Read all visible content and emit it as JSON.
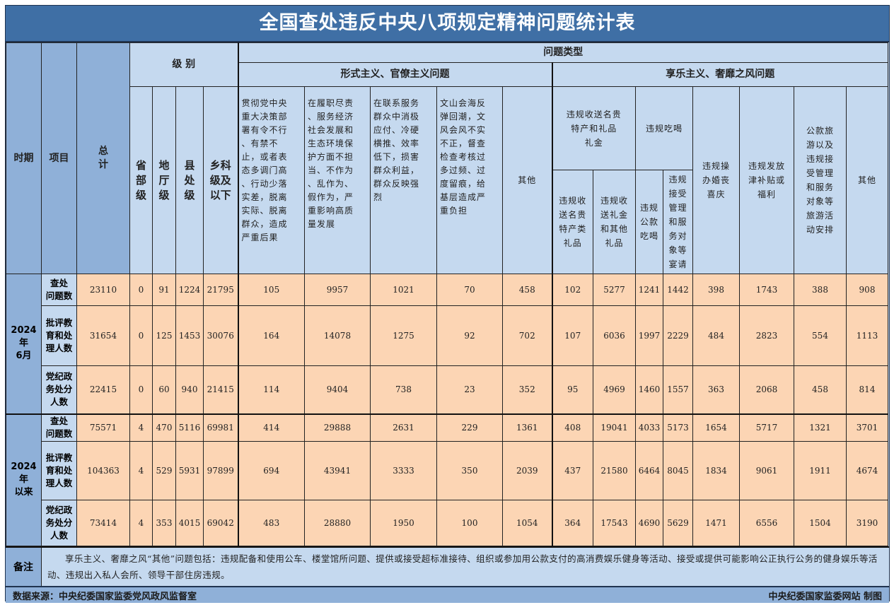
{
  "title": "全国查处违反中央八项规定精神问题统计表",
  "header": {
    "period": "时期",
    "item": "项目",
    "total": "总\n计",
    "level": "级 别",
    "levels": [
      "省\n部\n级",
      "地\n厅\n级",
      "县\n处\n级",
      "乡科\n级及\n以下"
    ],
    "problem_type": "问题类型",
    "formalism": "形式主义、官僚主义问题",
    "formalism_cols": [
      "贯彻党中央\n重大决策部\n署有令不行\n、有禁不\n止，或者表\n态多调门高\n、行动少落\n实差，脱离\n实际、脱离\n群众，造成\n严重后果",
      "在履职尽责\n、服务经济\n社会发展和\n生态环境保\n护方面不担\n当、不作为\n、乱作为、\n假作为，严\n重影响高质\n量发展",
      "在联系服务\n群众中消极\n应付、冷硬\n横推、效率\n低下，损害\n群众利益，\n群众反映强\n烈",
      "文山会海反\n弹回潮，文\n风会风不实\n不正，督查\n检查考核过\n多过频、过\n度留痕，给\n基层造成严\n重负担",
      "其他"
    ],
    "hedonism": "享乐主义、奢靡之风问题",
    "gift_group": "违规收送名贵\n特产和礼品\n礼金",
    "gift_cols": [
      "违规收\n送名贵\n特产类\n礼品",
      "违规收\n送礼金\n和其他\n礼品"
    ],
    "dining_group": "违规吃喝",
    "dining_cols": [
      "违规\n公款\n吃喝",
      "违规\n接受\n管理\n和服\n务对\n象等\n宴请"
    ],
    "hedonism_cols": [
      "违规操\n办婚丧\n喜庆",
      "违规发放\n津补贴或\n福利",
      "公款旅\n游以及\n违规接\n受管理\n和服务\n对象等\n旅游活\n动安排",
      "其他"
    ]
  },
  "periods": [
    {
      "label": "2024年\n6月",
      "rows": [
        {
          "item": "查处\n问题数",
          "values": [
            "23110",
            "0",
            "91",
            "1224",
            "21795",
            "105",
            "9957",
            "1021",
            "70",
            "458",
            "102",
            "5277",
            "1241",
            "1442",
            "398",
            "1743",
            "388",
            "908"
          ]
        },
        {
          "item": "批评教\n育和处\n理人数",
          "values": [
            "31654",
            "0",
            "125",
            "1453",
            "30076",
            "164",
            "14078",
            "1275",
            "92",
            "702",
            "107",
            "6036",
            "1997",
            "2229",
            "484",
            "2823",
            "554",
            "1113"
          ]
        },
        {
          "item": "党纪政\n务处分\n人数",
          "values": [
            "22415",
            "0",
            "60",
            "940",
            "21415",
            "114",
            "9404",
            "738",
            "23",
            "352",
            "95",
            "4969",
            "1460",
            "1557",
            "363",
            "2068",
            "458",
            "814"
          ]
        }
      ]
    },
    {
      "label": "2024年\n以来",
      "rows": [
        {
          "item": "查处\n问题数",
          "values": [
            "75571",
            "4",
            "470",
            "5116",
            "69981",
            "414",
            "29888",
            "2631",
            "229",
            "1361",
            "408",
            "19041",
            "4033",
            "5173",
            "1654",
            "5717",
            "1321",
            "3701"
          ]
        },
        {
          "item": "批评教\n育和处\n理人数",
          "values": [
            "104363",
            "4",
            "529",
            "5931",
            "97899",
            "694",
            "43941",
            "3333",
            "350",
            "2039",
            "437",
            "21580",
            "6464",
            "8045",
            "1834",
            "9061",
            "1911",
            "4674"
          ]
        },
        {
          "item": "党纪政\n务处分\n人数",
          "values": [
            "73414",
            "4",
            "353",
            "4015",
            "69042",
            "483",
            "28880",
            "1950",
            "100",
            "1054",
            "364",
            "17543",
            "4690",
            "5629",
            "1471",
            "6556",
            "1504",
            "3190"
          ]
        }
      ]
    }
  ],
  "note": {
    "label": "备注",
    "text": "享乐主义、奢靡之风“其他”问题包括：违规配备和使用公车、楼堂馆所问题、提供或接受超标准接待、组织或参加用公款支付的高消费娱乐健身等活动、接受或提供可能影响公正执行公务的健身娱乐等活动、违规出入私人会所、领导干部住房违规。"
  },
  "footer": {
    "source": "数据来源：中央纪委国家监委党风政风监督室",
    "credit": "中央纪委国家监委网站 制图"
  },
  "colors": {
    "title_bg": "#3f6fa5",
    "header_bg": "#c5d9ef",
    "side_bg": "#8fb0d8",
    "cell_bg": "#fcd5b4"
  }
}
